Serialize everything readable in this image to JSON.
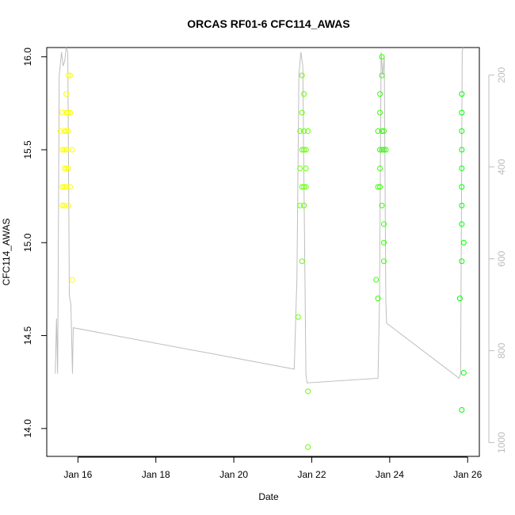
{
  "chart_data": {
    "type": "scatter",
    "title": "ORCAS RF01-6 CFC114_AWAS",
    "xlabel": "Date",
    "ylabel": "CFC114_AWAS",
    "x_ticks": [
      "Jan 16",
      "Jan 18",
      "Jan 20",
      "Jan 22",
      "Jan 24",
      "Jan 26"
    ],
    "x_tick_values": [
      16,
      18,
      20,
      22,
      24,
      26
    ],
    "x_range": [
      15.2,
      26.3
    ],
    "y_ticks": [
      14.0,
      14.5,
      15.0,
      15.5,
      16.0
    ],
    "y_range": [
      13.85,
      16.05
    ],
    "right_axis": {
      "label": "",
      "ticks": [
        200,
        400,
        600,
        800,
        1000
      ],
      "range": [
        1030,
        140
      ],
      "color": "#bdbdbd"
    },
    "grid": false,
    "legend": "none",
    "point_color_scale": [
      "#ffff00",
      "#00ff00"
    ],
    "series": [
      {
        "name": "",
        "x": [
          15.55,
          15.6,
          15.6,
          15.6,
          15.6,
          15.65,
          15.65,
          15.65,
          15.65,
          15.65,
          15.7,
          15.7,
          15.7,
          15.7,
          15.7,
          15.7,
          15.75,
          15.75,
          15.75,
          15.75,
          15.75,
          15.8,
          15.8,
          15.8,
          15.85,
          15.85,
          21.65,
          21.7,
          21.7,
          21.7,
          21.75,
          21.75,
          21.75,
          21.75,
          21.75,
          21.8,
          21.8,
          21.8,
          21.8,
          21.8,
          21.85,
          21.85,
          21.85,
          21.9,
          21.9,
          21.9,
          23.65,
          23.7,
          23.7,
          23.7,
          23.75,
          23.75,
          23.75,
          23.75,
          23.75,
          23.8,
          23.8,
          23.8,
          23.8,
          23.8,
          23.85,
          23.85,
          23.85,
          23.85,
          23.85,
          23.9,
          25.8,
          25.85,
          25.85,
          25.85,
          25.85,
          25.85,
          25.85,
          25.85,
          25.85,
          25.85,
          25.85,
          25.9,
          25.9
        ],
        "y": [
          15.6,
          15.7,
          15.5,
          15.3,
          15.2,
          15.6,
          15.5,
          15.4,
          15.3,
          15.2,
          15.8,
          15.7,
          15.6,
          15.5,
          15.4,
          15.3,
          15.9,
          15.7,
          15.6,
          15.4,
          15.2,
          15.9,
          15.7,
          15.3,
          15.5,
          14.8,
          14.6,
          15.6,
          15.4,
          15.2,
          15.9,
          15.7,
          15.5,
          15.3,
          14.9,
          15.8,
          15.6,
          15.5,
          15.3,
          15.2,
          15.5,
          15.4,
          15.3,
          15.6,
          14.2,
          13.9,
          14.8,
          15.6,
          15.3,
          14.7,
          15.8,
          15.7,
          15.5,
          15.4,
          15.3,
          16.0,
          15.9,
          15.6,
          15.5,
          15.2,
          15.5,
          15.1,
          14.9,
          15.0,
          15.6,
          15.5,
          14.7,
          15.8,
          15.7,
          15.6,
          15.5,
          15.4,
          15.3,
          15.2,
          15.1,
          14.9,
          14.1,
          15.0,
          14.3
        ]
      }
    ],
    "altitude_trace": {
      "x": [
        15.42,
        15.45,
        15.48,
        15.52,
        15.58,
        15.62,
        15.66,
        15.7,
        15.74,
        15.78,
        15.82,
        15.86,
        15.88,
        21.55,
        21.62,
        21.67,
        21.72,
        21.77,
        21.82,
        21.85,
        21.88,
        23.7,
        23.74,
        23.78,
        23.82,
        23.86,
        23.9,
        23.92,
        25.78,
        25.82,
        25.86,
        25.88
      ],
      "y": [
        850,
        730,
        850,
        200,
        150,
        180,
        170,
        140,
        150,
        680,
        700,
        850,
        750,
        840,
        640,
        200,
        150,
        180,
        600,
        850,
        870,
        860,
        680,
        150,
        200,
        160,
        690,
        740,
        860,
        850,
        150,
        140
      ]
    }
  }
}
